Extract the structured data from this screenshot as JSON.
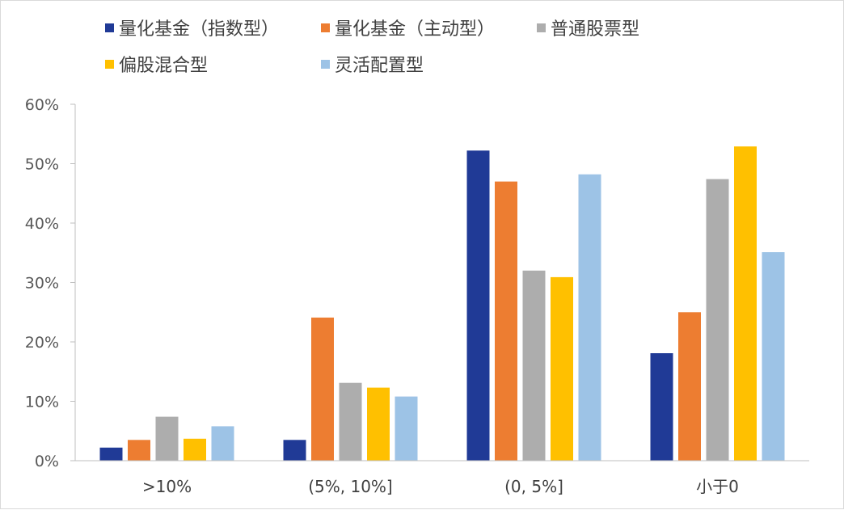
{
  "chart_data": {
    "type": "bar",
    "title": "",
    "xlabel": "",
    "ylabel": "",
    "categories": [
      ">10%",
      "(5%, 10%]",
      "(0, 5%]",
      "小于0"
    ],
    "ylim": [
      0,
      60
    ],
    "yticks": [
      "0%",
      "10%",
      "20%",
      "30%",
      "40%",
      "50%",
      "60%"
    ],
    "grid": false,
    "legend_position": "top",
    "series": [
      {
        "name": "量化基金（指数型）",
        "color": "#203A96",
        "values": [
          2.2,
          3.5,
          52.2,
          18.1
        ]
      },
      {
        "name": "量化基金（主动型）",
        "color": "#ED7D31",
        "values": [
          3.5,
          24.1,
          47.0,
          25.0
        ]
      },
      {
        "name": "普通股票型",
        "color": "#ADADAD",
        "values": [
          7.4,
          13.1,
          32.0,
          47.4
        ]
      },
      {
        "name": "偏股混合型",
        "color": "#FFC000",
        "values": [
          3.7,
          12.3,
          30.9,
          52.9
        ]
      },
      {
        "name": "灵活配置型",
        "color": "#9DC3E6",
        "values": [
          5.8,
          10.8,
          48.2,
          35.1
        ]
      }
    ]
  }
}
